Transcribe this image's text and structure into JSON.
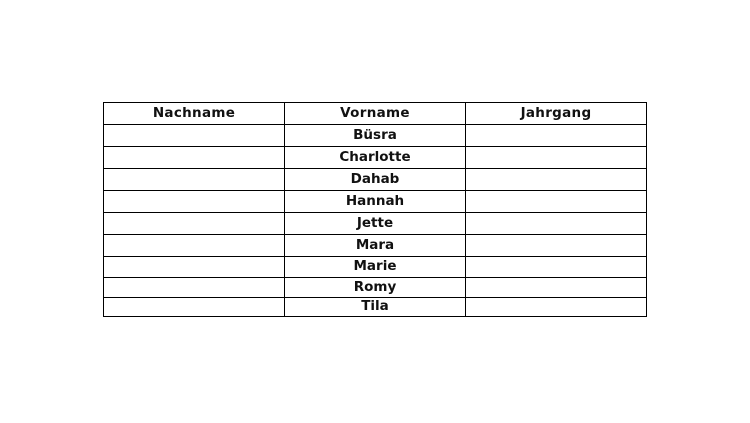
{
  "table": {
    "headers": [
      "Nachname",
      "Vorname",
      "Jahrgang"
    ],
    "rows": [
      [
        "",
        "Büsra",
        ""
      ],
      [
        "",
        "Charlotte",
        ""
      ],
      [
        "",
        "Dahab",
        ""
      ],
      [
        "",
        "Hannah",
        ""
      ],
      [
        "",
        "Jette",
        ""
      ],
      [
        "",
        "Mara",
        ""
      ],
      [
        "",
        "Marie",
        ""
      ],
      [
        "",
        "Romy",
        ""
      ],
      [
        "",
        "Tila",
        ""
      ]
    ]
  }
}
